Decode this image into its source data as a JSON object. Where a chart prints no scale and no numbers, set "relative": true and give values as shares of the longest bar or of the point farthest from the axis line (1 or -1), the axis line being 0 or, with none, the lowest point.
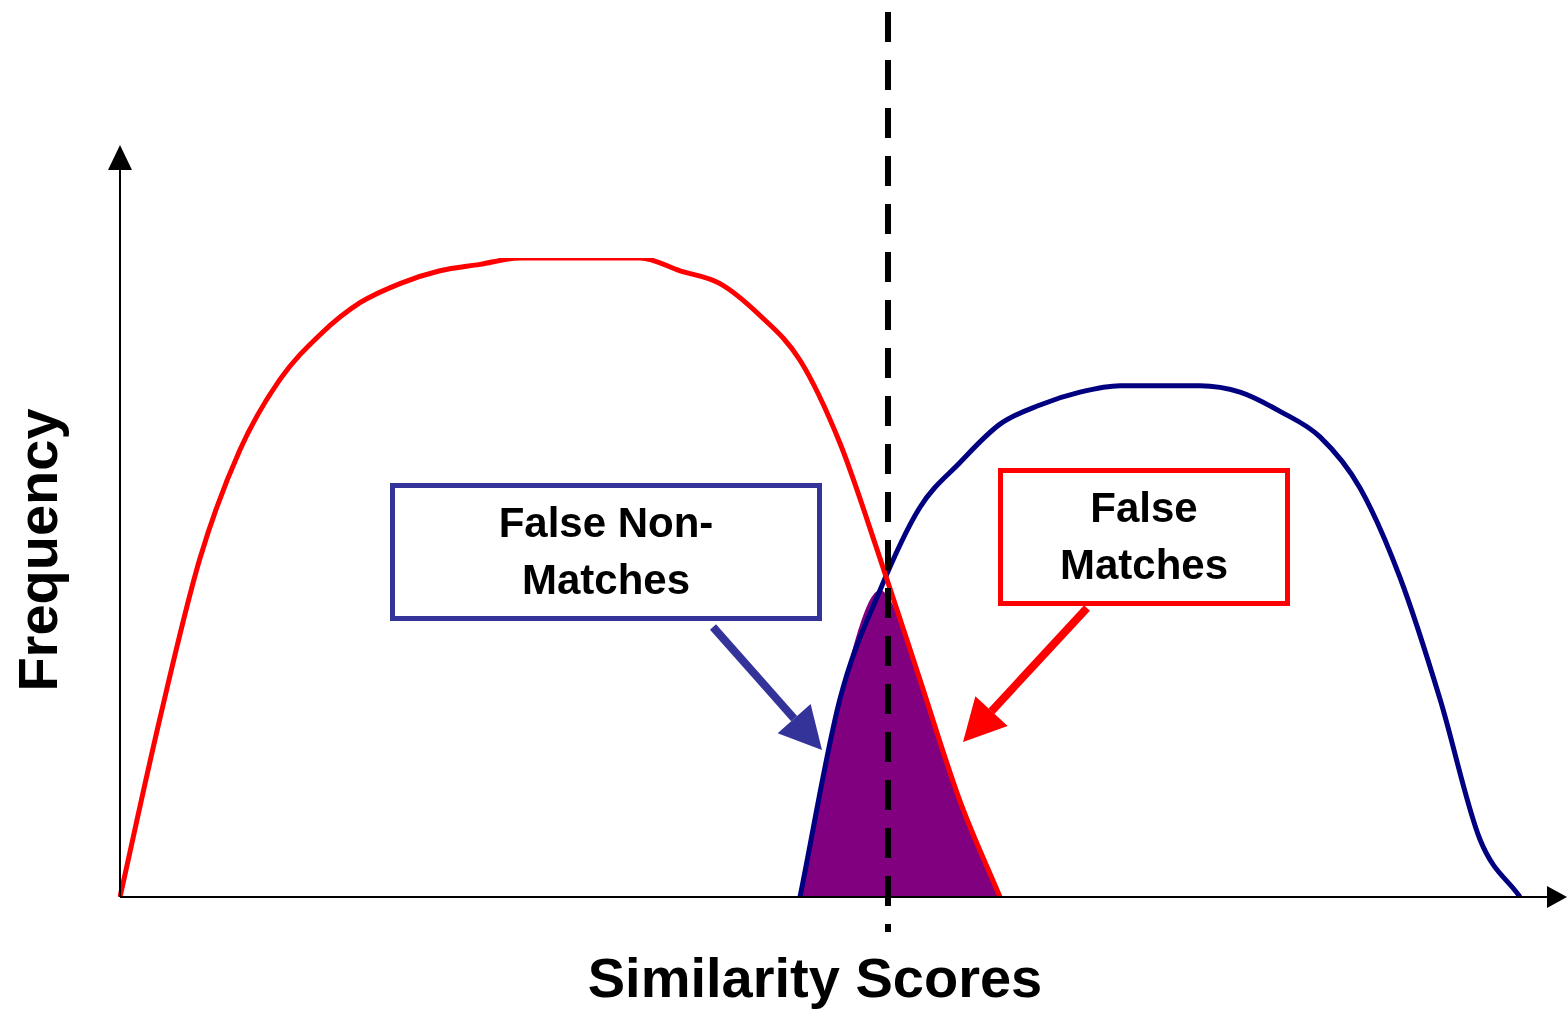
{
  "chart_data": {
    "type": "line",
    "relative": true,
    "xlabel": "Similarity Scores",
    "ylabel": "Frequency",
    "categories": [
      null,
      null,
      null,
      null,
      null,
      null,
      null,
      null,
      null,
      null,
      null,
      null,
      null,
      null,
      null,
      null,
      null,
      null,
      null,
      null,
      null,
      null,
      null,
      null,
      null,
      null,
      null,
      null,
      null,
      null,
      null,
      null,
      null,
      null,
      null,
      null
    ],
    "series": [
      {
        "type": "area",
        "color": "#800080",
        "values": [
          null,
          null,
          null,
          null,
          null,
          null,
          null,
          null,
          null,
          null,
          null,
          null,
          null,
          null,
          null,
          null,
          null,
          0,
          0.31,
          0.48,
          0.34,
          0.15,
          0,
          null,
          null,
          null,
          null,
          null,
          null,
          null,
          null,
          null,
          null,
          null,
          null,
          null
        ]
      },
      {
        "type": "line",
        "color": "#ff0000",
        "values": [
          0,
          0.28,
          0.53,
          0.7,
          0.81,
          0.88,
          0.93,
          0.96,
          0.98,
          0.99,
          1,
          1,
          1,
          1,
          0.98,
          0.96,
          0.91,
          0.84,
          0.71,
          0.53,
          0.34,
          0.15,
          0,
          null,
          null,
          null,
          null,
          null,
          null,
          null,
          null,
          null,
          null,
          null,
          null,
          null
        ]
      },
      {
        "type": "line",
        "color": "#000080",
        "values": [
          null,
          null,
          null,
          null,
          null,
          null,
          null,
          null,
          null,
          null,
          null,
          null,
          null,
          null,
          null,
          null,
          null,
          0,
          0.31,
          0.48,
          0.61,
          0.68,
          0.74,
          0.77,
          0.79,
          0.8,
          0.8,
          0.8,
          0.79,
          0.76,
          0.72,
          0.64,
          0.5,
          0.31,
          0.09,
          0
        ]
      }
    ],
    "annotations": [
      "False Non-Matches",
      "False Matches"
    ]
  }
}
